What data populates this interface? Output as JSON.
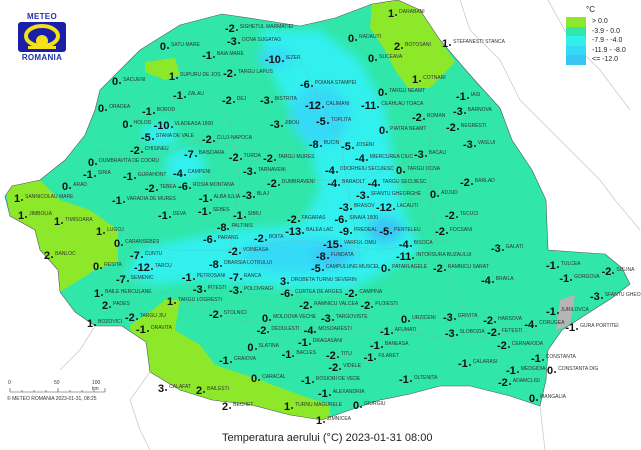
{
  "title": "Temperatura aerului (°C) 2023-01-31 08:00",
  "logo": {
    "top": "METEO",
    "bottom": "ROMANIA"
  },
  "copyright": "© METEO ROMANIA 2023-01-31, 08:25",
  "scale": {
    "labels": [
      "0",
      "50",
      "100 km"
    ]
  },
  "legend": {
    "unit": "°C",
    "items": [
      {
        "label": "> 0.0",
        "color": "#8ee82a"
      },
      {
        "label": "-3.9 - 0.0",
        "color": "#30e6a8"
      },
      {
        "label": "-7.9 - -4.0",
        "color": "#30f0ee"
      },
      {
        "label": "-11.9 - -8.0",
        "color": "#34daf6"
      },
      {
        "label": "<= -12.0",
        "color": "#38c6f4"
      }
    ]
  },
  "stations": [
    {
      "name": "Sighetul Marmatiei",
      "value": "-2"
    },
    {
      "name": "Ocna Sugatag",
      "value": "-3"
    },
    {
      "name": "Satu Mare",
      "value": "0"
    },
    {
      "name": "Baia Mare",
      "value": "-1"
    },
    {
      "name": "Supuru de Jos",
      "value": "1"
    },
    {
      "name": "Targu Lapus",
      "value": "-2"
    },
    {
      "name": "Iezer",
      "value": "-10"
    },
    {
      "name": "Sacueni",
      "value": "0"
    },
    {
      "name": "Zalau",
      "value": "-1"
    },
    {
      "name": "Oradea",
      "value": "0"
    },
    {
      "name": "Borod",
      "value": "-1"
    },
    {
      "name": "Dej",
      "value": "-2"
    },
    {
      "name": "Bistrita",
      "value": "-3"
    },
    {
      "name": "Holod",
      "value": "0"
    },
    {
      "name": "Vladeasa 1800",
      "value": "-10"
    },
    {
      "name": "Chisineu",
      "value": "-2"
    },
    {
      "name": "Stana de Vale",
      "value": "-5"
    },
    {
      "name": "Dumbravita de Codru",
      "value": "0"
    },
    {
      "name": "Cluj-Napoca",
      "value": "-2"
    },
    {
      "name": "Jibou",
      "value": "-3"
    },
    {
      "name": "Baisoara",
      "value": "-7"
    },
    {
      "name": "Turda",
      "value": "-2"
    },
    {
      "name": "Targu Mures",
      "value": "-2"
    },
    {
      "name": "Campeni",
      "value": "-4"
    },
    {
      "name": "Rosia Montana",
      "value": "-6"
    },
    {
      "name": "Tarnaveni",
      "value": "-3"
    },
    {
      "name": "Blaj",
      "value": "-3"
    },
    {
      "name": "Dumbraveni",
      "value": "-2"
    },
    {
      "name": "Siria",
      "value": "-1"
    },
    {
      "name": "Gurahont",
      "value": "-1"
    },
    {
      "name": "Arad",
      "value": "0"
    },
    {
      "name": "Sannicolau Mare",
      "value": "1"
    },
    {
      "name": "Varadia de Mures",
      "value": "-1"
    },
    {
      "name": "Tebea",
      "value": "-2"
    },
    {
      "name": "Alba Iulia",
      "value": "-1"
    },
    {
      "name": "Sebes",
      "value": "-1"
    },
    {
      "name": "Jimbolia",
      "value": "1"
    },
    {
      "name": "Timisoara",
      "value": "1"
    },
    {
      "name": "Deva",
      "value": "-1"
    },
    {
      "name": "Lugoj",
      "value": "1"
    },
    {
      "name": "Sibiu",
      "value": "-1"
    },
    {
      "name": "Fagaras",
      "value": "-2"
    },
    {
      "name": "Paltinis",
      "value": "-8"
    },
    {
      "name": "Boita",
      "value": "-2"
    },
    {
      "name": "Balea Lac",
      "value": "-13"
    },
    {
      "name": "Banloc",
      "value": "2"
    },
    {
      "name": "Caransebes",
      "value": "0"
    },
    {
      "name": "Resita",
      "value": "0"
    },
    {
      "name": "Cuntu",
      "value": "-7"
    },
    {
      "name": "Semenic",
      "value": "-7"
    },
    {
      "name": "Tarcu",
      "value": "-12"
    },
    {
      "name": "Petrosani",
      "value": "-1"
    },
    {
      "name": "Parang",
      "value": "-6"
    },
    {
      "name": "Obarsia Lotrului",
      "value": "-8"
    },
    {
      "name": "Voineasa",
      "value": "-2"
    },
    {
      "name": "Ranca",
      "value": "-7"
    },
    {
      "name": "Polovragi",
      "value": "-3"
    },
    {
      "name": "Varful Omu",
      "value": "-15"
    },
    {
      "name": "Fundata",
      "value": "-8"
    },
    {
      "name": "Predeal",
      "value": "-9"
    },
    {
      "name": "Campulung Muscel",
      "value": "-5"
    },
    {
      "name": "Curtea de Arges",
      "value": "-6"
    },
    {
      "name": "Sinaia 1500",
      "value": "-6"
    },
    {
      "name": "Brasov",
      "value": "-3"
    },
    {
      "name": "Sfantu Gheorghe",
      "value": "-3"
    },
    {
      "name": "Baraolt",
      "value": "-4"
    },
    {
      "name": "Targu Secuiesc",
      "value": "-4"
    },
    {
      "name": "Lacauti",
      "value": "-12"
    },
    {
      "name": "Penteleu",
      "value": "-5"
    },
    {
      "name": "Intorsura Buzaului",
      "value": "-11"
    },
    {
      "name": "Bisoca",
      "value": "-4"
    },
    {
      "name": "Campina",
      "value": "-2"
    },
    {
      "name": "Patarlagele",
      "value": "0"
    },
    {
      "name": "Ramnicu Sarat",
      "value": "-2"
    },
    {
      "name": "Focsani",
      "value": "-2"
    },
    {
      "name": "Tecuci",
      "value": "-2"
    },
    {
      "name": "Galati",
      "value": "-3"
    },
    {
      "name": "Braila",
      "value": "-4"
    },
    {
      "name": "Adjud",
      "value": "0"
    },
    {
      "name": "Barlad",
      "value": "-2"
    },
    {
      "name": "Bacau",
      "value": "-3"
    },
    {
      "name": "Targu Ocna",
      "value": "0"
    },
    {
      "name": "Miercurea Ciuc",
      "value": "-4"
    },
    {
      "name": "Odorheiu Secuiesc",
      "value": "-4"
    },
    {
      "name": "Toplita",
      "value": "-5"
    },
    {
      "name": "Joseni",
      "value": "-5"
    },
    {
      "name": "Bucin",
      "value": "-8"
    },
    {
      "name": "Ceahlau Toaca",
      "value": "-11"
    },
    {
      "name": "Calimani",
      "value": "-12"
    },
    {
      "name": "Poiana Stampei",
      "value": "-6"
    },
    {
      "name": "Radauti",
      "value": "0"
    },
    {
      "name": "Darabani",
      "value": "1"
    },
    {
      "name": "Botosani",
      "value": "2"
    },
    {
      "name": "Suceava",
      "value": "0"
    },
    {
      "name": "Stefanesti Stanca",
      "value": "1"
    },
    {
      "name": "Cotnari",
      "value": "1"
    },
    {
      "name": "Targu Neamt",
      "value": "0"
    },
    {
      "name": "Piatra Neamt",
      "value": "0"
    },
    {
      "name": "Roman",
      "value": "-2"
    },
    {
      "name": "Iasi",
      "value": "-1"
    },
    {
      "name": "Barnova",
      "value": "-3"
    },
    {
      "name": "Negresti",
      "value": "-2"
    },
    {
      "name": "Vaslui",
      "value": "-3"
    },
    {
      "name": "Tulcea",
      "value": "-1"
    },
    {
      "name": "Gorgova",
      "value": "-1"
    },
    {
      "name": "Sulina",
      "value": "-2"
    },
    {
      "name": "Sfantu Gheorghe",
      "value": "-3"
    },
    {
      "name": "Jurilovca",
      "value": "-1"
    },
    {
      "name": "Gura Portitei",
      "value": "-1"
    },
    {
      "name": "Corugea",
      "value": "-4"
    },
    {
      "name": "Harsova",
      "value": "-2"
    },
    {
      "name": "Urziceni",
      "value": "0"
    },
    {
      "name": "Slobozia",
      "value": "-3"
    },
    {
      "name": "Grivita",
      "value": "-3"
    },
    {
      "name": "Fetesti",
      "value": "-2"
    },
    {
      "name": "Cernavoda",
      "value": "-2"
    },
    {
      "name": "Medgidia",
      "value": "-1"
    },
    {
      "name": "Constanta",
      "value": "-1"
    },
    {
      "name": "Constanta Dig",
      "value": "0"
    },
    {
      "name": "Adamclisi",
      "value": "-2"
    },
    {
      "name": "Calarasi",
      "value": "-1"
    },
    {
      "name": "Oltenita",
      "value": "-1"
    },
    {
      "name": "Giurgiu",
      "value": "0"
    },
    {
      "name": "Mangalia",
      "value": "0"
    },
    {
      "name": "Ploiesti",
      "value": "-2"
    },
    {
      "name": "Targoviste",
      "value": "-3"
    },
    {
      "name": "Afumati",
      "value": "-1"
    },
    {
      "name": "Baneasa",
      "value": "-1"
    },
    {
      "name": "Filaret",
      "value": "-1"
    },
    {
      "name": "Titu",
      "value": "-2"
    },
    {
      "name": "Videle",
      "value": "-2"
    },
    {
      "name": "Alexandria",
      "value": "-1"
    },
    {
      "name": "Rosiori de Vede",
      "value": "-1"
    },
    {
      "name": "Turnu Magurele",
      "value": "1"
    },
    {
      "name": "Zimnicea",
      "value": "1"
    },
    {
      "name": "Caracal",
      "value": "0"
    },
    {
      "name": "Bechet",
      "value": "2"
    },
    {
      "name": "Calafat",
      "value": "3"
    },
    {
      "name": "Bailesti",
      "value": "2"
    },
    {
      "name": "Craiova",
      "value": "-1"
    },
    {
      "name": "Slatina",
      "value": "0"
    },
    {
      "name": "Bacles",
      "value": "-1"
    },
    {
      "name": "Dragasani",
      "value": "-1"
    },
    {
      "name": "Stolnici",
      "value": "-2"
    },
    {
      "name": "Pitesti",
      "value": "-3"
    },
    {
      "name": "Targu Logresti",
      "value": "1"
    },
    {
      "name": "Targu Jiu",
      "value": "-2"
    },
    {
      "name": "Pades",
      "value": "2"
    },
    {
      "name": "Baile Herculane",
      "value": "1"
    },
    {
      "name": "Bozovici",
      "value": "1"
    },
    {
      "name": "Oravita",
      "value": "-1"
    },
    {
      "name": "Moldova Veche",
      "value": "0"
    },
    {
      "name": "Drobeta Turnu Severin",
      "value": "3"
    },
    {
      "name": "Dedulesti",
      "value": "-2"
    },
    {
      "name": "Mosoaresti",
      "value": "-4"
    },
    {
      "name": "Ramnicu Valcea",
      "value": "-2"
    }
  ]
}
